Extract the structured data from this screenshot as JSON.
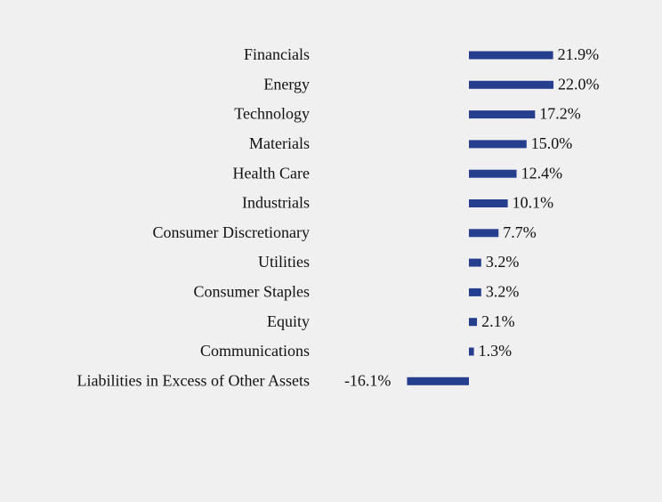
{
  "chart_data": {
    "type": "bar",
    "color": "#253f8e",
    "categories": [
      "Financials",
      "Energy",
      "Technology",
      "Materials",
      "Health Care",
      "Industrials",
      "Consumer Discretionary",
      "Utilities",
      "Consumer Staples",
      "Equity",
      "Communications",
      "Liabilities in Excess of Other Assets"
    ],
    "values": [
      21.9,
      22.0,
      17.2,
      15.0,
      12.4,
      10.1,
      7.7,
      3.2,
      3.2,
      2.1,
      1.3,
      -16.1
    ],
    "value_labels": [
      "21.9%",
      "22.0%",
      "17.2%",
      "15.0%",
      "12.4%",
      "10.1%",
      "7.7%",
      "3.2%",
      "3.2%",
      "2.1%",
      "1.3%",
      "-16.1%"
    ]
  }
}
